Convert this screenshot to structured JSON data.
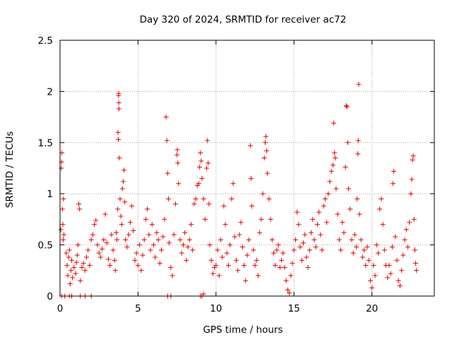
{
  "chart_data": {
    "type": "scatter",
    "title": "Day 320 of 2024, SRMTID for receiver ac72",
    "xlabel": "GPS time / hours",
    "ylabel": "SRMTID / TECUs",
    "xlim": [
      0,
      24
    ],
    "ylim": [
      0,
      2.5
    ],
    "x_ticks": [
      0,
      5,
      10,
      15,
      20
    ],
    "x_tick_labels": [
      "0",
      "5",
      "10",
      "15",
      "20"
    ],
    "y_ticks": [
      0,
      0.5,
      1,
      1.5,
      2,
      2.5
    ],
    "y_tick_labels": [
      "0",
      "0.5",
      "1",
      "1.5",
      "2",
      "2.5"
    ],
    "grid": true,
    "marker": "+",
    "color": "#e80000",
    "series": [
      {
        "name": "SRMTID",
        "points": [
          [
            0.05,
            0.65
          ],
          [
            0.08,
            1.25
          ],
          [
            0.1,
            1.31
          ],
          [
            0.12,
            1.4
          ],
          [
            0.15,
            0.85
          ],
          [
            0.18,
            0.7
          ],
          [
            0.2,
            0.55
          ],
          [
            0.22,
            0.95
          ],
          [
            0.25,
            0.6
          ],
          [
            0.1,
            0
          ],
          [
            0.3,
            0
          ],
          [
            0.6,
            0
          ],
          [
            0.75,
            0
          ],
          [
            1.3,
            0
          ],
          [
            1.6,
            0
          ],
          [
            2.0,
            0
          ],
          [
            6.9,
            0
          ],
          [
            7.1,
            0
          ],
          [
            9.0,
            0
          ],
          [
            9.1,
            0
          ],
          [
            9.2,
            0.02
          ],
          [
            0.4,
            0.42
          ],
          [
            0.45,
            0.3
          ],
          [
            0.5,
            0.2
          ],
          [
            0.55,
            0.38
          ],
          [
            0.6,
            0.45
          ],
          [
            0.65,
            0.12
          ],
          [
            0.7,
            0.25
          ],
          [
            0.75,
            0.35
          ],
          [
            0.8,
            0.18
          ],
          [
            0.9,
            0.28
          ],
          [
            1.0,
            0.22
          ],
          [
            1.05,
            0.33
          ],
          [
            1.1,
            0.4
          ],
          [
            1.15,
            0.5
          ],
          [
            1.2,
            0.9
          ],
          [
            1.25,
            0.85
          ],
          [
            1.3,
            0.15
          ],
          [
            1.4,
            0.28
          ],
          [
            1.5,
            0.32
          ],
          [
            1.6,
            0.25
          ],
          [
            1.7,
            0.38
          ],
          [
            1.8,
            0.45
          ],
          [
            1.9,
            0.3
          ],
          [
            2.0,
            0.55
          ],
          [
            2.1,
            0.6
          ],
          [
            2.2,
            0.7
          ],
          [
            2.3,
            0.74
          ],
          [
            2.4,
            0.5
          ],
          [
            2.5,
            0.42
          ],
          [
            2.6,
            0.38
          ],
          [
            2.7,
            0.46
          ],
          [
            2.8,
            0.55
          ],
          [
            2.9,
            0.8
          ],
          [
            3.0,
            0.52
          ],
          [
            3.1,
            0.36
          ],
          [
            3.2,
            0.3
          ],
          [
            3.3,
            0.6
          ],
          [
            3.4,
            0.45
          ],
          [
            3.5,
            0.35
          ],
          [
            3.55,
            0.25
          ],
          [
            3.6,
            0.62
          ],
          [
            3.65,
            0.55
          ],
          [
            3.7,
            0.85
          ],
          [
            3.72,
            1.6
          ],
          [
            3.74,
            1.53
          ],
          [
            3.75,
            1.96
          ],
          [
            3.76,
            1.98
          ],
          [
            3.77,
            1.89
          ],
          [
            3.78,
            1.83
          ],
          [
            3.8,
            1.35
          ],
          [
            3.85,
            0.95
          ],
          [
            3.9,
            0.78
          ],
          [
            3.95,
            0.7
          ],
          [
            4.0,
            1.05
          ],
          [
            4.05,
            1.12
          ],
          [
            4.1,
            1.23
          ],
          [
            4.15,
            0.92
          ],
          [
            4.2,
            0.55
          ],
          [
            4.3,
            0.48
          ],
          [
            4.4,
            0.6
          ],
          [
            4.5,
            0.72
          ],
          [
            4.6,
            0.88
          ],
          [
            4.7,
            0.64
          ],
          [
            4.8,
            0.35
          ],
          [
            4.9,
            0.42
          ],
          [
            5.0,
            0.3
          ],
          [
            5.1,
            0.5
          ],
          [
            5.2,
            0.25
          ],
          [
            5.3,
            0.4
          ],
          [
            5.4,
            0.55
          ],
          [
            5.5,
            0.75
          ],
          [
            5.6,
            0.85
          ],
          [
            5.7,
            0.6
          ],
          [
            5.8,
            0.45
          ],
          [
            5.9,
            0.7
          ],
          [
            6.0,
            0.5
          ],
          [
            6.1,
            0.38
          ],
          [
            6.2,
            0.62
          ],
          [
            6.3,
            0.55
          ],
          [
            6.4,
            0.32
          ],
          [
            6.5,
            0.45
          ],
          [
            6.6,
            0.58
          ],
          [
            6.7,
            0.75
          ],
          [
            6.8,
            1.75
          ],
          [
            6.85,
            1.52
          ],
          [
            6.9,
            1.2
          ],
          [
            6.95,
            0.95
          ],
          [
            7.0,
            0.52
          ],
          [
            7.1,
            0.28
          ],
          [
            7.2,
            0.2
          ],
          [
            7.3,
            0.6
          ],
          [
            7.4,
            0.9
          ],
          [
            7.5,
            1.38
          ],
          [
            7.52,
            1.43
          ],
          [
            7.55,
            1.3
          ],
          [
            7.6,
            1.1
          ],
          [
            7.7,
            0.55
          ],
          [
            7.8,
            0.42
          ],
          [
            7.9,
            0.5
          ],
          [
            8.0,
            0.62
          ],
          [
            8.1,
            0.35
          ],
          [
            8.2,
            0.48
          ],
          [
            8.3,
            0.55
          ],
          [
            8.4,
            0.7
          ],
          [
            8.5,
            0.45
          ],
          [
            8.6,
            0.9
          ],
          [
            8.7,
            0.95
          ],
          [
            8.8,
            1.08
          ],
          [
            8.9,
            1.1
          ],
          [
            8.95,
            1.26
          ],
          [
            9.0,
            1.4
          ],
          [
            9.05,
            1.32
          ],
          [
            9.1,
            1.15
          ],
          [
            9.2,
            0.95
          ],
          [
            9.3,
            0.75
          ],
          [
            9.4,
            1.25
          ],
          [
            9.45,
            1.52
          ],
          [
            9.5,
            1.3
          ],
          [
            9.55,
            0.9
          ],
          [
            9.6,
            0.5
          ],
          [
            9.7,
            0.35
          ],
          [
            9.8,
            0.22
          ],
          [
            9.9,
            0.28
          ],
          [
            10.0,
            0.3
          ],
          [
            10.1,
            0.45
          ],
          [
            10.2,
            0.2
          ],
          [
            10.3,
            0.55
          ],
          [
            10.4,
            0.38
          ],
          [
            10.5,
            0.88
          ],
          [
            10.6,
            0.7
          ],
          [
            10.7,
            0.42
          ],
          [
            10.8,
            0.3
          ],
          [
            10.9,
            0.5
          ],
          [
            11.0,
            0.95
          ],
          [
            11.1,
            1.1
          ],
          [
            11.2,
            0.58
          ],
          [
            11.3,
            0.35
          ],
          [
            11.4,
            0.25
          ],
          [
            11.5,
            0.6
          ],
          [
            11.6,
            0.72
          ],
          [
            11.7,
            0.48
          ],
          [
            11.8,
            0.3
          ],
          [
            11.9,
            0.15
          ],
          [
            12.0,
            0.4
          ],
          [
            12.1,
            0.55
          ],
          [
            12.2,
            1.47
          ],
          [
            12.25,
            1.15
          ],
          [
            12.3,
            0.88
          ],
          [
            12.4,
            0.45
          ],
          [
            12.5,
            0.3
          ],
          [
            12.6,
            0.35
          ],
          [
            12.7,
            0.2
          ],
          [
            12.8,
            0.62
          ],
          [
            12.9,
            0.75
          ],
          [
            13.0,
            1.0
          ],
          [
            13.1,
            1.35
          ],
          [
            13.15,
            1.5
          ],
          [
            13.2,
            1.56
          ],
          [
            13.25,
            1.42
          ],
          [
            13.3,
            1.2
          ],
          [
            13.4,
            0.95
          ],
          [
            13.5,
            0.75
          ],
          [
            13.6,
            0.55
          ],
          [
            13.7,
            0.42
          ],
          [
            13.8,
            0.3
          ],
          [
            13.9,
            0.45
          ],
          [
            14.0,
            0.5
          ],
          [
            14.1,
            0.28
          ],
          [
            14.2,
            0.35
          ],
          [
            14.3,
            0.42
          ],
          [
            14.4,
            0.28
          ],
          [
            14.5,
            0.15
          ],
          [
            14.6,
            0.06
          ],
          [
            14.7,
            0.03
          ],
          [
            14.8,
            0.2
          ],
          [
            14.9,
            0.32
          ],
          [
            15.0,
            0.45
          ],
          [
            15.1,
            0.55
          ],
          [
            15.2,
            0.82
          ],
          [
            15.3,
            0.7
          ],
          [
            15.4,
            0.48
          ],
          [
            15.5,
            0.35
          ],
          [
            15.6,
            0.52
          ],
          [
            15.7,
            0.6
          ],
          [
            15.8,
            0.38
          ],
          [
            15.9,
            0.28
          ],
          [
            16.0,
            0.45
          ],
          [
            16.1,
            0.62
          ],
          [
            16.2,
            0.75
          ],
          [
            16.3,
            0.55
          ],
          [
            16.4,
            0.48
          ],
          [
            16.5,
            0.7
          ],
          [
            16.6,
            0.82
          ],
          [
            16.7,
            0.6
          ],
          [
            16.8,
            0.45
          ],
          [
            16.9,
            0.88
          ],
          [
            17.0,
            0.95
          ],
          [
            17.1,
            0.72
          ],
          [
            17.2,
            1.0
          ],
          [
            17.3,
            1.12
          ],
          [
            17.4,
            1.22
          ],
          [
            17.5,
            1.28
          ],
          [
            17.55,
            1.69
          ],
          [
            17.6,
            1.4
          ],
          [
            17.65,
            1.35
          ],
          [
            17.7,
            1.05
          ],
          [
            17.8,
            0.8
          ],
          [
            17.9,
            0.55
          ],
          [
            18.0,
            0.45
          ],
          [
            18.1,
            0.72
          ],
          [
            18.2,
            0.62
          ],
          [
            18.3,
            1.26
          ],
          [
            18.35,
            1.86
          ],
          [
            18.4,
            1.85
          ],
          [
            18.45,
            1.5
          ],
          [
            18.5,
            1.05
          ],
          [
            18.6,
            0.85
          ],
          [
            18.7,
            0.55
          ],
          [
            18.8,
            0.42
          ],
          [
            18.9,
            0.6
          ],
          [
            19.0,
            0.48
          ],
          [
            19.05,
            0.95
          ],
          [
            19.1,
            1.39
          ],
          [
            19.12,
            1.52
          ],
          [
            19.15,
            2.07
          ],
          [
            19.2,
            0.8
          ],
          [
            19.3,
            0.55
          ],
          [
            19.4,
            0.38
          ],
          [
            19.5,
            0.45
          ],
          [
            19.6,
            0.3
          ],
          [
            19.7,
            0.48
          ],
          [
            19.8,
            0.35
          ],
          [
            19.9,
            0.15
          ],
          [
            20.0,
            0.08
          ],
          [
            20.1,
            0.3
          ],
          [
            20.2,
            0.2
          ],
          [
            20.3,
            0.5
          ],
          [
            20.4,
            0.42
          ],
          [
            20.5,
            0.85
          ],
          [
            20.6,
            0.95
          ],
          [
            20.7,
            0.7
          ],
          [
            20.8,
            0.45
          ],
          [
            20.9,
            0.3
          ],
          [
            21.0,
            0.18
          ],
          [
            21.1,
            0.3
          ],
          [
            21.2,
            0.22
          ],
          [
            21.3,
            0.48
          ],
          [
            21.35,
            1.1
          ],
          [
            21.4,
            1.22
          ],
          [
            21.5,
            0.58
          ],
          [
            21.6,
            0.35
          ],
          [
            21.7,
            0.15
          ],
          [
            21.8,
            0.1
          ],
          [
            21.9,
            0.25
          ],
          [
            22.0,
            0.4
          ],
          [
            22.1,
            0.55
          ],
          [
            22.2,
            0.65
          ],
          [
            22.3,
            0.48
          ],
          [
            22.4,
            0.72
          ],
          [
            22.5,
            1.0
          ],
          [
            22.55,
            1.14
          ],
          [
            22.6,
            1.33
          ],
          [
            22.65,
            1.37
          ],
          [
            22.7,
            0.75
          ],
          [
            22.75,
            0.45
          ],
          [
            22.8,
            0.32
          ],
          [
            22.85,
            0.25
          ]
        ]
      }
    ]
  }
}
